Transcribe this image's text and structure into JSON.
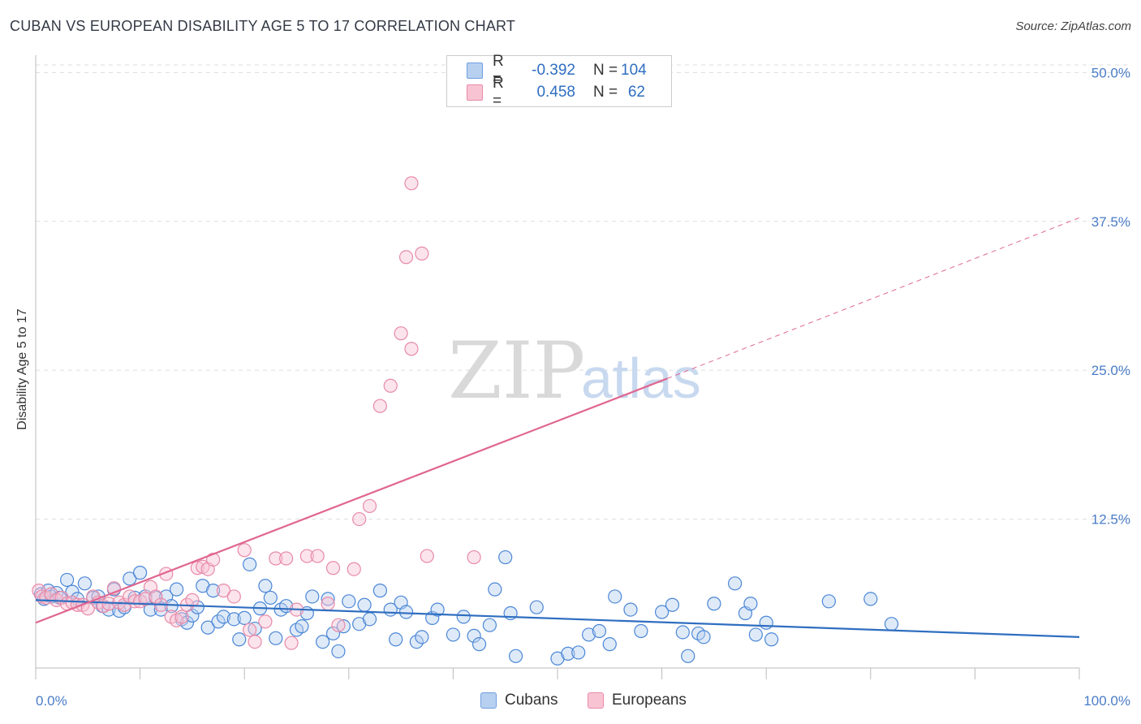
{
  "header": {
    "title": "CUBAN VS EUROPEAN DISABILITY AGE 5 TO 17 CORRELATION CHART",
    "source": "Source: ZipAtlas.com"
  },
  "watermark": {
    "zip": "ZIP",
    "atlas": "atlas"
  },
  "legend": {
    "r_label": "R =",
    "n_label": "N =",
    "rows": [
      {
        "name": "Cubans",
        "r": "-0.392",
        "n": "104",
        "fill": "#b8d0f0",
        "stroke": "#6f9ee0"
      },
      {
        "name": "Europeans",
        "r": "0.458",
        "n": "62",
        "fill": "#f8c4d4",
        "stroke": "#e88aa8"
      }
    ]
  },
  "bottom_legend": {
    "cubans": "Cubans",
    "europeans": "Europeans"
  },
  "chart_data": {
    "type": "scatter",
    "title": "CUBAN VS EUROPEAN DISABILITY AGE 5 TO 17 CORRELATION CHART",
    "xlabel": "",
    "ylabel": "Disability Age 5 to 17",
    "xlim": [
      0,
      100
    ],
    "ylim": [
      0,
      52
    ],
    "x_tick_labels": [
      "0.0%",
      "100.0%"
    ],
    "y_ticks": [
      12.5,
      25.0,
      37.5,
      50.0
    ],
    "y_tick_labels": [
      "12.5%",
      "25.0%",
      "37.5%",
      "50.0%"
    ],
    "grid": true,
    "colors": {
      "cubans": "#4a86d6",
      "cubans_line": "#2f6ec0",
      "europeans": "#e88aa8",
      "europeans_line": "#e06690"
    },
    "series": [
      {
        "name": "Cubans",
        "trend": {
          "x": [
            0,
            100
          ],
          "y": [
            5.7,
            2.6
          ]
        },
        "points": [
          [
            0.5,
            6.2
          ],
          [
            0.8,
            5.8
          ],
          [
            1.2,
            6.5
          ],
          [
            1.5,
            6.0
          ],
          [
            2.0,
            6.3
          ],
          [
            2.3,
            5.9
          ],
          [
            3.0,
            7.4
          ],
          [
            3.5,
            6.4
          ],
          [
            4.0,
            5.8
          ],
          [
            4.7,
            7.1
          ],
          [
            5.5,
            5.9
          ],
          [
            6.0,
            6.0
          ],
          [
            6.4,
            5.2
          ],
          [
            7.0,
            4.9
          ],
          [
            7.5,
            6.6
          ],
          [
            8.0,
            4.8
          ],
          [
            8.5,
            5.1
          ],
          [
            9.0,
            7.5
          ],
          [
            9.5,
            5.9
          ],
          [
            10.0,
            8.0
          ],
          [
            10.5,
            6.0
          ],
          [
            11.0,
            4.9
          ],
          [
            11.5,
            5.9
          ],
          [
            12.0,
            4.9
          ],
          [
            12.5,
            6.0
          ],
          [
            13.0,
            5.2
          ],
          [
            13.5,
            6.6
          ],
          [
            14.0,
            4.1
          ],
          [
            14.5,
            3.8
          ],
          [
            15.0,
            4.4
          ],
          [
            15.5,
            5.1
          ],
          [
            16.0,
            6.9
          ],
          [
            16.5,
            3.4
          ],
          [
            17.0,
            6.5
          ],
          [
            17.5,
            3.9
          ],
          [
            18.0,
            4.3
          ],
          [
            19.0,
            4.1
          ],
          [
            19.5,
            2.4
          ],
          [
            20.0,
            4.2
          ],
          [
            20.5,
            8.7
          ],
          [
            21.0,
            3.3
          ],
          [
            21.5,
            5.0
          ],
          [
            22.0,
            6.9
          ],
          [
            22.5,
            5.9
          ],
          [
            23.0,
            2.5
          ],
          [
            23.5,
            4.9
          ],
          [
            24.0,
            5.2
          ],
          [
            25.0,
            3.2
          ],
          [
            25.5,
            3.5
          ],
          [
            26.0,
            4.6
          ],
          [
            26.5,
            6.0
          ],
          [
            27.5,
            2.2
          ],
          [
            28.0,
            5.8
          ],
          [
            28.5,
            2.9
          ],
          [
            29.0,
            1.4
          ],
          [
            29.5,
            3.5
          ],
          [
            30.0,
            5.6
          ],
          [
            31.0,
            3.7
          ],
          [
            31.5,
            5.3
          ],
          [
            32.0,
            4.1
          ],
          [
            33.0,
            6.5
          ],
          [
            34.0,
            4.9
          ],
          [
            34.5,
            2.4
          ],
          [
            35.0,
            5.5
          ],
          [
            35.5,
            4.7
          ],
          [
            36.5,
            2.2
          ],
          [
            37.0,
            2.6
          ],
          [
            38.0,
            4.2
          ],
          [
            38.5,
            4.9
          ],
          [
            40.0,
            2.8
          ],
          [
            41.0,
            4.3
          ],
          [
            42.0,
            2.7
          ],
          [
            42.5,
            2.0
          ],
          [
            43.5,
            3.6
          ],
          [
            44.0,
            6.6
          ],
          [
            45.0,
            9.3
          ],
          [
            45.5,
            4.6
          ],
          [
            46.0,
            1.0
          ],
          [
            48.0,
            5.1
          ],
          [
            50.0,
            0.8
          ],
          [
            51.0,
            1.2
          ],
          [
            52.0,
            1.3
          ],
          [
            53.0,
            2.8
          ],
          [
            54.0,
            3.1
          ],
          [
            55.0,
            2.0
          ],
          [
            55.5,
            6.0
          ],
          [
            57.0,
            4.9
          ],
          [
            58.0,
            3.1
          ],
          [
            60.0,
            4.7
          ],
          [
            61.0,
            5.3
          ],
          [
            62.0,
            3.0
          ],
          [
            62.5,
            1.0
          ],
          [
            63.5,
            2.9
          ],
          [
            64.0,
            2.6
          ],
          [
            65.0,
            5.4
          ],
          [
            67.0,
            7.1
          ],
          [
            68.0,
            4.6
          ],
          [
            68.5,
            5.4
          ],
          [
            69.0,
            2.8
          ],
          [
            70.0,
            3.8
          ],
          [
            70.5,
            2.4
          ],
          [
            76.0,
            5.6
          ],
          [
            80.0,
            5.8
          ],
          [
            82.0,
            3.7
          ]
        ]
      },
      {
        "name": "Europeans",
        "trend": {
          "x": [
            0,
            60.5
          ],
          "y": [
            3.8,
            24.3
          ]
        },
        "trend_dashed": {
          "x": [
            60.5,
            100
          ],
          "y": [
            24.3,
            37.8
          ]
        },
        "points": [
          [
            0.3,
            6.5
          ],
          [
            0.6,
            6.0
          ],
          [
            1.0,
            5.9
          ],
          [
            1.5,
            6.2
          ],
          [
            2.0,
            5.7
          ],
          [
            2.5,
            5.9
          ],
          [
            3.0,
            5.4
          ],
          [
            3.5,
            5.5
          ],
          [
            4.0,
            5.3
          ],
          [
            4.5,
            5.3
          ],
          [
            5.0,
            5.0
          ],
          [
            5.5,
            6.0
          ],
          [
            6.0,
            5.5
          ],
          [
            6.5,
            5.2
          ],
          [
            7.0,
            5.4
          ],
          [
            7.5,
            6.7
          ],
          [
            8.0,
            5.5
          ],
          [
            8.5,
            5.3
          ],
          [
            9.0,
            6.0
          ],
          [
            9.5,
            5.6
          ],
          [
            10.0,
            5.6
          ],
          [
            10.5,
            5.8
          ],
          [
            11.0,
            6.8
          ],
          [
            11.5,
            6.0
          ],
          [
            12.0,
            5.3
          ],
          [
            12.5,
            7.9
          ],
          [
            13.0,
            4.3
          ],
          [
            13.5,
            4.0
          ],
          [
            14.0,
            4.3
          ],
          [
            14.5,
            5.3
          ],
          [
            15.0,
            5.7
          ],
          [
            15.5,
            8.4
          ],
          [
            16.0,
            8.5
          ],
          [
            16.5,
            8.3
          ],
          [
            17.0,
            9.1
          ],
          [
            18.0,
            6.5
          ],
          [
            19.0,
            6.0
          ],
          [
            20.0,
            9.9
          ],
          [
            20.5,
            3.2
          ],
          [
            21.0,
            2.2
          ],
          [
            22.0,
            3.9
          ],
          [
            23.0,
            9.2
          ],
          [
            24.0,
            9.2
          ],
          [
            24.5,
            2.1
          ],
          [
            25.0,
            4.9
          ],
          [
            26.0,
            9.4
          ],
          [
            27.0,
            9.4
          ],
          [
            28.0,
            5.4
          ],
          [
            28.5,
            8.4
          ],
          [
            29.0,
            3.6
          ],
          [
            30.5,
            8.3
          ],
          [
            31.0,
            12.5
          ],
          [
            32.0,
            13.6
          ],
          [
            33.0,
            22.0
          ],
          [
            34.0,
            23.7
          ],
          [
            35.0,
            28.1
          ],
          [
            35.5,
            34.5
          ],
          [
            36.0,
            26.8
          ],
          [
            37.5,
            9.4
          ],
          [
            42.0,
            9.3
          ],
          [
            37.0,
            34.8
          ],
          [
            36.0,
            40.7
          ]
        ]
      }
    ]
  }
}
